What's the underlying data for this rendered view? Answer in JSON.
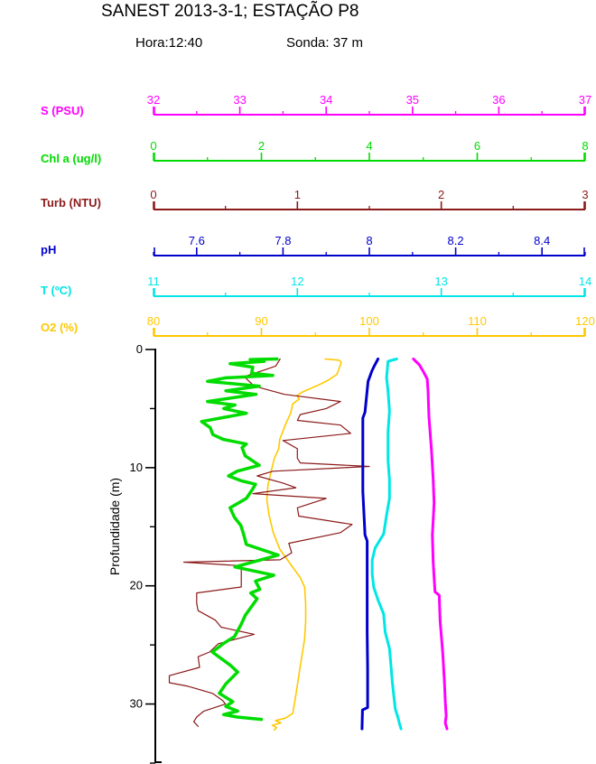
{
  "header": {
    "title": "SANEST 2013-3-1; ESTAÇÃO P8",
    "hora": "Hora:12:40",
    "sonda": "Sonda: 37 m"
  },
  "chart_data": {
    "type": "line",
    "description": "Multi-parameter water-column depth profile; six horizontal value axes on top, depth axis vertical",
    "grid": false,
    "legend_position": "left-axis-labels",
    "y_axis": {
      "label": "Profundidade (m)",
      "min": 0,
      "max": 35,
      "major_ticks": [
        0,
        10,
        20,
        30
      ],
      "minor_ticks": [
        5,
        15,
        25,
        35
      ],
      "color": "#000000"
    },
    "params": [
      {
        "id": "S",
        "label": "S (PSU)",
        "color": "#FF00FF",
        "min": 32,
        "max": 37,
        "major_values": [
          32,
          33,
          34,
          35,
          36,
          37
        ],
        "major_labels": [
          "32",
          "33",
          "34",
          "35",
          "36",
          "37"
        ],
        "minor_values": [
          32.5,
          33.5,
          34.5,
          35.5,
          36.5
        ],
        "profile": [
          [
            0.8,
            35.01
          ],
          [
            1.3,
            35.08
          ],
          [
            1.8,
            35.12
          ],
          [
            2.5,
            35.17
          ],
          [
            3.5,
            35.18
          ],
          [
            5.7,
            35.19
          ],
          [
            8.5,
            35.22
          ],
          [
            11.0,
            35.24
          ],
          [
            13.0,
            35.25
          ],
          [
            15.7,
            35.23
          ],
          [
            18.0,
            35.24
          ],
          [
            20.5,
            35.26
          ],
          [
            20.8,
            35.31
          ],
          [
            23.0,
            35.32
          ],
          [
            25.7,
            35.35
          ],
          [
            28.2,
            35.37
          ],
          [
            29.8,
            35.38
          ],
          [
            31.0,
            35.39
          ],
          [
            31.6,
            35.38
          ],
          [
            32.1,
            35.4
          ]
        ]
      },
      {
        "id": "Chl",
        "label": "Chl a (ug/l)",
        "color": "#00DC00",
        "min": 0,
        "max": 8,
        "major_values": [
          0,
          2,
          4,
          6,
          8
        ],
        "major_labels": [
          "0",
          "2",
          "4",
          "6",
          "8"
        ],
        "minor_values": [
          1,
          3,
          5,
          7
        ],
        "profile": [
          [
            0.8,
            2.29
          ],
          [
            0.85,
            1.79
          ],
          [
            1.0,
            2.05
          ],
          [
            1.2,
            1.42
          ],
          [
            1.5,
            1.84
          ],
          [
            2.0,
            1.82
          ],
          [
            2.2,
            2.21
          ],
          [
            2.4,
            1.34
          ],
          [
            2.7,
            1.0
          ],
          [
            3.1,
            1.96
          ],
          [
            3.5,
            1.34
          ],
          [
            3.8,
            1.9
          ],
          [
            4.4,
            1.0
          ],
          [
            4.7,
            1.51
          ],
          [
            5.0,
            1.3
          ],
          [
            5.4,
            1.72
          ],
          [
            6.1,
            0.89
          ],
          [
            6.6,
            1.05
          ],
          [
            7.2,
            1.1
          ],
          [
            7.6,
            1.29
          ],
          [
            8.0,
            1.72
          ],
          [
            8.3,
            1.64
          ],
          [
            9.0,
            1.7
          ],
          [
            9.8,
            1.96
          ],
          [
            10.3,
            1.55
          ],
          [
            10.7,
            1.39
          ],
          [
            11.1,
            1.62
          ],
          [
            11.4,
            1.89
          ],
          [
            11.8,
            1.84
          ],
          [
            12.6,
            1.72
          ],
          [
            13.4,
            1.42
          ],
          [
            14.2,
            1.5
          ],
          [
            14.9,
            1.62
          ],
          [
            15.8,
            1.68
          ],
          [
            16.5,
            1.72
          ],
          [
            17.4,
            2.31
          ],
          [
            18.4,
            1.51
          ],
          [
            19.1,
            2.23
          ],
          [
            19.6,
            1.89
          ],
          [
            20.3,
            1.97
          ],
          [
            20.6,
            1.8
          ],
          [
            21.1,
            1.92
          ],
          [
            21.8,
            1.81
          ],
          [
            22.5,
            1.7
          ],
          [
            23.3,
            1.62
          ],
          [
            24.3,
            1.5
          ],
          [
            24.9,
            1.29
          ],
          [
            25.6,
            1.09
          ],
          [
            26.7,
            1.42
          ],
          [
            27.3,
            1.56
          ],
          [
            28.3,
            1.34
          ],
          [
            29.1,
            1.22
          ],
          [
            29.8,
            1.47
          ],
          [
            30.2,
            1.34
          ],
          [
            30.6,
            1.56
          ],
          [
            30.9,
            1.3
          ],
          [
            31.1,
            1.55
          ],
          [
            31.3,
            2.0
          ]
        ]
      },
      {
        "id": "Turb",
        "label": "Turb (NTU)",
        "color": "#8B1A1A",
        "min": 0,
        "max": 3,
        "major_values": [
          0,
          1,
          2,
          3
        ],
        "major_labels": [
          "0",
          "1",
          "2",
          "3"
        ],
        "minor_values": [
          0.5,
          1.5,
          2.5
        ],
        "profile": [
          [
            0.8,
            0.88
          ],
          [
            1.4,
            0.85
          ],
          [
            1.7,
            0.78
          ],
          [
            2.3,
            0.63
          ],
          [
            3.1,
            0.7
          ],
          [
            3.8,
            0.91
          ],
          [
            4.4,
            1.3
          ],
          [
            5.0,
            1.2
          ],
          [
            5.5,
            1.02
          ],
          [
            6.0,
            1.0
          ],
          [
            6.4,
            1.3
          ],
          [
            7.1,
            1.37
          ],
          [
            7.7,
            0.9
          ],
          [
            8.4,
            1.0
          ],
          [
            9.2,
            1.0
          ],
          [
            9.6,
            1.02
          ],
          [
            9.9,
            1.5
          ],
          [
            10.3,
            0.83
          ],
          [
            10.7,
            0.72
          ],
          [
            11.3,
            0.9
          ],
          [
            11.7,
            0.99
          ],
          [
            12.2,
            0.69
          ],
          [
            12.6,
            1.2
          ],
          [
            13.4,
            1.0
          ],
          [
            14.1,
            1.01
          ],
          [
            14.8,
            1.38
          ],
          [
            15.5,
            1.3
          ],
          [
            16.4,
            0.94
          ],
          [
            17.2,
            0.96
          ],
          [
            17.8,
            0.88
          ],
          [
            18.0,
            0.21
          ],
          [
            18.3,
            0.61
          ],
          [
            20.1,
            0.61
          ],
          [
            20.6,
            0.3
          ],
          [
            21.5,
            0.3
          ],
          [
            22.1,
            0.31
          ],
          [
            22.9,
            0.43
          ],
          [
            23.5,
            0.47
          ],
          [
            24.1,
            0.7
          ],
          [
            24.9,
            0.45
          ],
          [
            25.6,
            0.39
          ],
          [
            26.0,
            0.31
          ],
          [
            26.9,
            0.32
          ],
          [
            27.6,
            0.11
          ],
          [
            28.2,
            0.11
          ],
          [
            28.5,
            0.24
          ],
          [
            29.1,
            0.41
          ],
          [
            29.7,
            0.48
          ],
          [
            30.0,
            0.5
          ],
          [
            30.6,
            0.35
          ],
          [
            31.1,
            0.3
          ],
          [
            31.5,
            0.28
          ],
          [
            31.9,
            0.31
          ]
        ]
      },
      {
        "id": "pH",
        "label": "pH",
        "color": "#0000CC",
        "min": 7.5,
        "max": 8.5,
        "major_values": [
          7.6,
          7.8,
          8.0,
          8.2,
          8.4
        ],
        "major_labels": [
          "7.6",
          "7.8",
          "8",
          "8.2",
          "8.4"
        ],
        "minor_values": [
          7.5,
          7.7,
          7.9,
          8.1,
          8.3,
          8.5
        ],
        "profile": [
          [
            0.8,
            8.02
          ],
          [
            1.5,
            8.01
          ],
          [
            1.8,
            8.006
          ],
          [
            2.7,
            7.997
          ],
          [
            5.3,
            7.99
          ],
          [
            5.8,
            7.985
          ],
          [
            8.0,
            7.985
          ],
          [
            12.0,
            7.985
          ],
          [
            15.7,
            7.99
          ],
          [
            16.2,
            7.995
          ],
          [
            20.0,
            7.995
          ],
          [
            23.9,
            7.995
          ],
          [
            27.0,
            7.996
          ],
          [
            30.3,
            7.996
          ],
          [
            30.5,
            7.984
          ],
          [
            32.1,
            7.983
          ]
        ]
      },
      {
        "id": "T",
        "label": "T (ºC)",
        "color": "#00E6E6",
        "min": 11,
        "max": 14,
        "major_values": [
          11,
          12,
          13,
          14
        ],
        "major_labels": [
          "11",
          "12",
          "13",
          "14"
        ],
        "minor_values": [
          11.5,
          12.5,
          13.5
        ],
        "profile": [
          [
            0.8,
            12.69
          ],
          [
            1.0,
            12.63
          ],
          [
            2.4,
            12.62
          ],
          [
            3.5,
            12.63
          ],
          [
            5.2,
            12.64
          ],
          [
            7.0,
            12.63
          ],
          [
            9.4,
            12.63
          ],
          [
            11.0,
            12.64
          ],
          [
            12.6,
            12.64
          ],
          [
            14.0,
            12.62
          ],
          [
            15.6,
            12.6
          ],
          [
            16.8,
            12.54
          ],
          [
            17.8,
            12.52
          ],
          [
            19.0,
            12.52
          ],
          [
            20.1,
            12.53
          ],
          [
            21.2,
            12.56
          ],
          [
            22.4,
            12.6
          ],
          [
            23.9,
            12.61
          ],
          [
            25.3,
            12.64
          ],
          [
            26.7,
            12.65
          ],
          [
            28.2,
            12.66
          ],
          [
            30.4,
            12.68
          ],
          [
            31.2,
            12.7
          ],
          [
            31.7,
            12.71
          ],
          [
            32.1,
            12.72
          ]
        ]
      },
      {
        "id": "O2",
        "label": "O2 (%)",
        "color": "#FFC800",
        "min": 80,
        "max": 120,
        "major_values": [
          80,
          90,
          100,
          110,
          120
        ],
        "major_labels": [
          "80",
          "90",
          "100",
          "110",
          "120"
        ],
        "minor_values": [
          85,
          95,
          105,
          115
        ],
        "profile": [
          [
            0.8,
            95.9
          ],
          [
            0.9,
            97.2
          ],
          [
            1.1,
            97.4
          ],
          [
            2.1,
            97.0
          ],
          [
            2.6,
            96.2
          ],
          [
            3.0,
            95.3
          ],
          [
            3.6,
            93.8
          ],
          [
            3.9,
            93.3
          ],
          [
            4.2,
            93.5
          ],
          [
            4.6,
            92.9
          ],
          [
            5.4,
            92.7
          ],
          [
            6.2,
            92.3
          ],
          [
            7.6,
            91.7
          ],
          [
            8.4,
            91.6
          ],
          [
            9.2,
            91.2
          ],
          [
            10.3,
            90.9
          ],
          [
            11.5,
            90.6
          ],
          [
            12.7,
            90.5
          ],
          [
            14.0,
            90.7
          ],
          [
            15.5,
            91.1
          ],
          [
            16.9,
            91.7
          ],
          [
            17.8,
            92.4
          ],
          [
            19.3,
            93.6
          ],
          [
            20.1,
            94.0
          ],
          [
            21.5,
            94.1
          ],
          [
            23.0,
            94.1
          ],
          [
            24.5,
            94.0
          ],
          [
            26.8,
            93.6
          ],
          [
            29.2,
            93.2
          ],
          [
            30.8,
            92.9
          ],
          [
            31.2,
            92.2
          ],
          [
            31.4,
            91.3
          ],
          [
            31.6,
            91.8
          ],
          [
            31.8,
            91.0
          ],
          [
            32.0,
            91.4
          ],
          [
            32.2,
            91.2
          ]
        ]
      }
    ]
  }
}
